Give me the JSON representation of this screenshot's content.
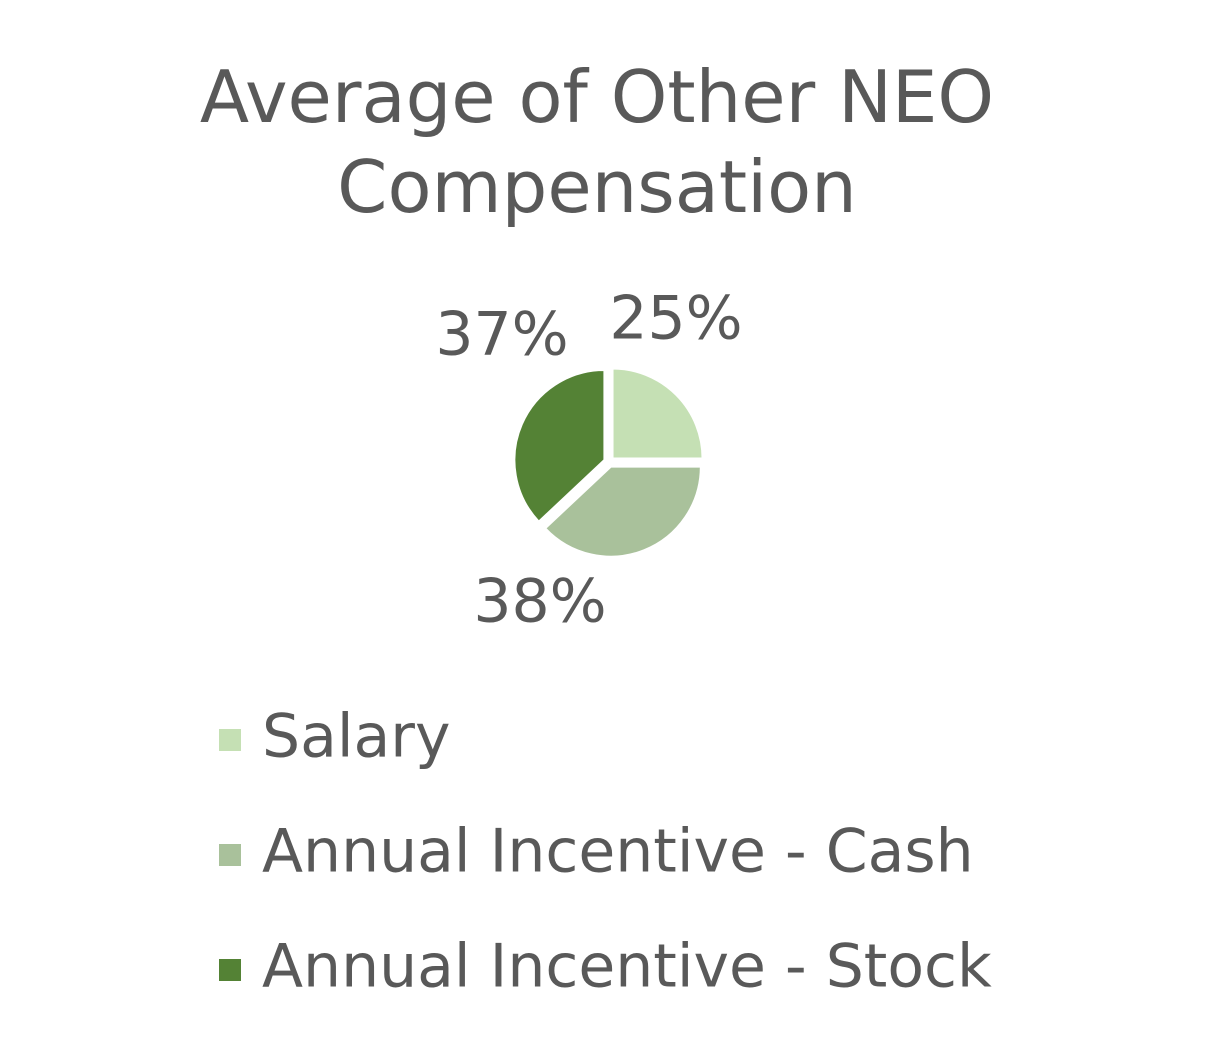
{
  "chart_data": {
    "type": "pie",
    "title": "Average of Other NEO Compensation",
    "categories": [
      "Salary",
      "Annual Incentive - Cash",
      "Annual Incentive - Stock"
    ],
    "values": [
      25,
      38,
      37
    ],
    "value_labels": [
      "25%",
      "38%",
      "37%"
    ],
    "colors": [
      "#c5e0b4",
      "#a9c19b",
      "#548235"
    ],
    "legend": "bottom"
  }
}
